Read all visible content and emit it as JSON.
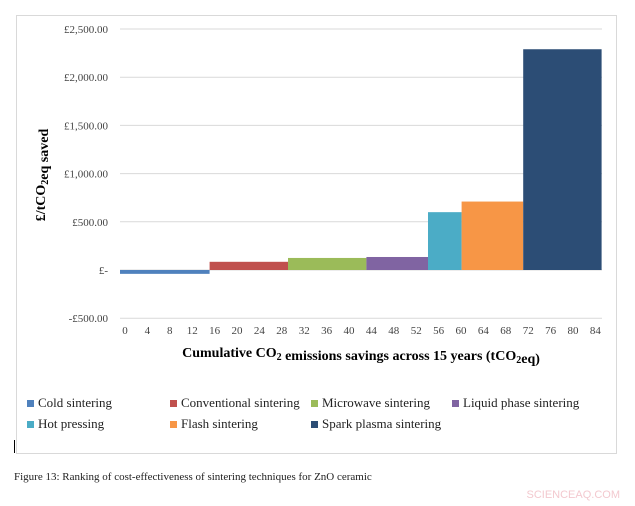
{
  "chart_data": {
    "type": "bar",
    "subtype": "variable-width step bars",
    "ylabel": "£/tCO2eq saved",
    "xlabel": "Cumulative CO2 emissions savings across 15 years (tCO2eq)",
    "ylim": [
      -500,
      2500
    ],
    "yticks": [
      -500,
      0,
      500,
      1000,
      1500,
      2000,
      2500
    ],
    "ytick_labels": [
      "-£500.00",
      "£-",
      "£500.00",
      "£1,000.00",
      "£1,500.00",
      "£2,000.00",
      "£2,500.00"
    ],
    "xticks": [
      0,
      4,
      8,
      12,
      16,
      20,
      24,
      28,
      32,
      36,
      40,
      44,
      48,
      52,
      56,
      60,
      64,
      68,
      72,
      76,
      80,
      84
    ],
    "grid": true,
    "legend_position": "bottom",
    "series": [
      {
        "name": "Cold sintering",
        "x_start": 0,
        "x_end": 16,
        "value": -40,
        "color": "#4f81bd"
      },
      {
        "name": "Conventional sintering",
        "x_start": 16,
        "x_end": 30,
        "value": 85,
        "color": "#c0504d"
      },
      {
        "name": "Microwave sintering",
        "x_start": 30,
        "x_end": 44,
        "value": 125,
        "color": "#9bbb59"
      },
      {
        "name": "Liquid phase sintering",
        "x_start": 44,
        "x_end": 55,
        "value": 135,
        "color": "#8064a2"
      },
      {
        "name": "Hot pressing",
        "x_start": 55,
        "x_end": 61,
        "value": 600,
        "color": "#4bacc6"
      },
      {
        "name": "Flash sintering",
        "x_start": 61,
        "x_end": 72,
        "value": 710,
        "color": "#f79646"
      },
      {
        "name": "Spark plasma sintering",
        "x_start": 72,
        "x_end": 86,
        "value": 2290,
        "color": "#2c4d75"
      }
    ]
  },
  "caption": "Figure 13: Ranking of cost-effectiveness of sintering techniques for ZnO ceramic",
  "watermark": "SCIENCEAQ.COM"
}
